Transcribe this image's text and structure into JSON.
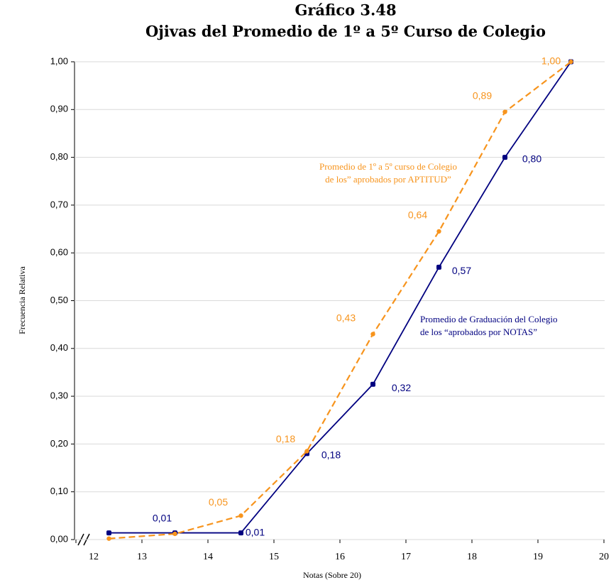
{
  "chart_data": {
    "type": "line",
    "title": [
      "Gráfico 3.48",
      "Ojivas del Promedio de 1º a 5º Curso de Colegio"
    ],
    "x_label": "Notas (Sobre 20)",
    "y_label": "Frecuencia Relativa",
    "xlim": [
      12,
      20
    ],
    "xticks": [
      12,
      13,
      14,
      15,
      16,
      17,
      18,
      19,
      20
    ],
    "ylim": [
      0,
      1
    ],
    "yticks": [
      {
        "value": 0,
        "label": "0,00"
      },
      {
        "value": 0.1,
        "label": "0,10"
      },
      {
        "value": 0.2,
        "label": "0,20"
      },
      {
        "value": 0.3,
        "label": "0,30"
      },
      {
        "value": 0.4,
        "label": "0,40"
      },
      {
        "value": 0.5,
        "label": "0,50"
      },
      {
        "value": 0.6,
        "label": "0,60"
      },
      {
        "value": 0.7,
        "label": "0,70"
      },
      {
        "value": 0.8,
        "label": "0,80"
      },
      {
        "value": 0.9,
        "label": "0,90"
      },
      {
        "value": 1,
        "label": "1,00"
      }
    ],
    "grid": true,
    "x": [
      12.5,
      13.5,
      14.5,
      15.5,
      16.5,
      17.5,
      18.5,
      19.5
    ],
    "series": [
      {
        "color": "#000080",
        "dashed": false,
        "annotation": [
          "Promedio de Graduación del Colegio",
          "de los “aprobados por NOTAS”"
        ],
        "values": [
          0.014,
          0.014,
          0.014,
          0.18,
          0.325,
          0.57,
          0.8,
          1.0
        ],
        "value_labels": [
          null,
          "0,01",
          "0,01",
          "0,18",
          "0,32",
          "0,57",
          "0,80",
          null
        ]
      },
      {
        "color": "#f7941d",
        "dashed": true,
        "annotation": [
          "Promedio de 1º a 5º curso de Colegio",
          "de los” aprobados por APTITUD”"
        ],
        "values": [
          0.002,
          0.012,
          0.05,
          0.185,
          0.43,
          0.645,
          0.895,
          1.0
        ],
        "value_labels": [
          null,
          null,
          "0,05",
          "0,18",
          "0,43",
          "0,64",
          "0,89",
          "1,00"
        ]
      }
    ]
  }
}
